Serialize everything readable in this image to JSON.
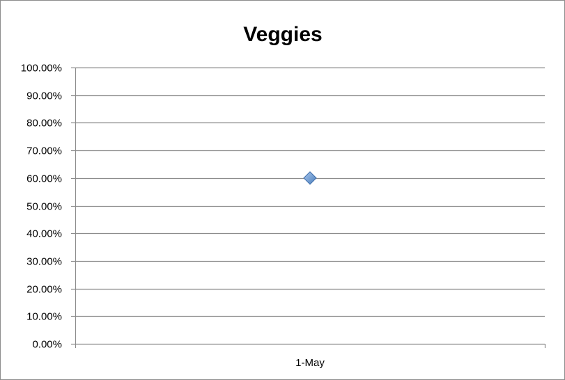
{
  "chart_data": {
    "type": "scatter",
    "title": "Veggies",
    "xlabel": "",
    "ylabel": "",
    "x_categories": [
      "1-May"
    ],
    "y_tick_labels": [
      "0.00%",
      "10.00%",
      "20.00%",
      "30.00%",
      "40.00%",
      "50.00%",
      "60.00%",
      "70.00%",
      "80.00%",
      "90.00%",
      "100.00%"
    ],
    "ylim": [
      0,
      1
    ],
    "y_tick_step": 0.1,
    "grid": true,
    "legend": "none",
    "series": [
      {
        "points": [
          {
            "x": "1-May",
            "y": 0.6
          }
        ],
        "color": "#4a7ebb",
        "marker": "diamond"
      }
    ]
  }
}
